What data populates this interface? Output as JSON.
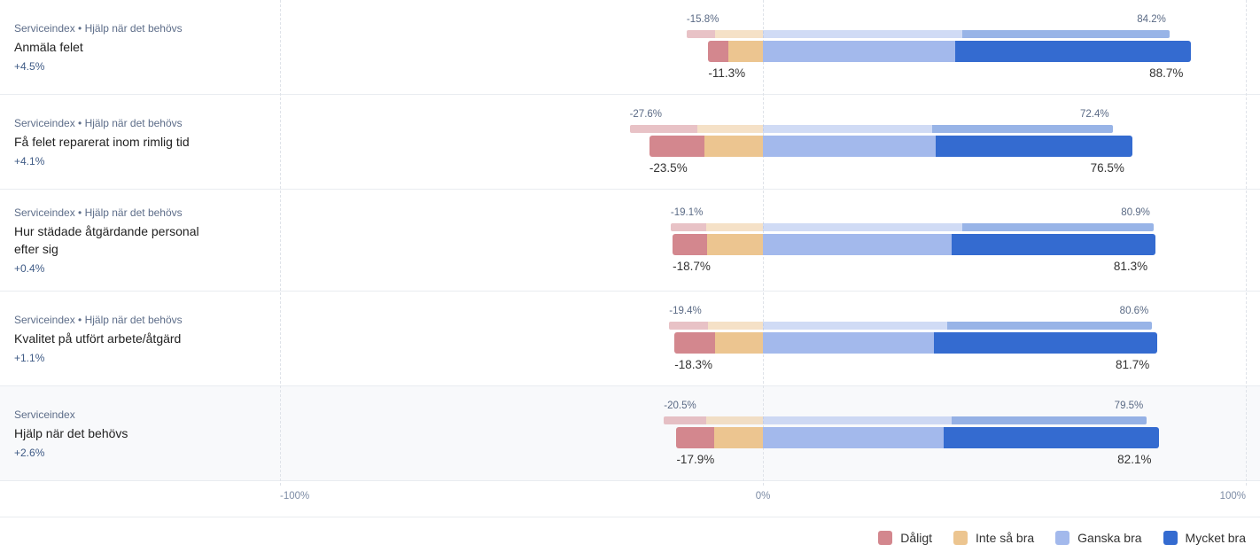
{
  "chart_data": {
    "type": "bar",
    "orientation": "horizontal",
    "stacked": true,
    "xlim": [
      -100,
      100
    ],
    "grid": true,
    "legend_position": "bottom-right",
    "ticks": [
      {
        "value": -100,
        "label": "-100%"
      },
      {
        "value": 0,
        "label": "0%"
      },
      {
        "value": 100,
        "label": "100%"
      }
    ],
    "series_names": [
      "Dåligt",
      "Inte så bra",
      "Ganska bra",
      "Mycket bra"
    ],
    "series_colors": [
      "#d3878e",
      "#ecc590",
      "#a3b9ec",
      "#346bd0"
    ],
    "negative_series_count": 2,
    "rows": [
      {
        "category": "Serviceindex • Hjälp när det behövs",
        "title": "Anmäla felet",
        "change": "+4.5%",
        "highlighted": false,
        "previous": {
          "values": [
            5.9,
            9.9,
            41.3,
            42.9
          ],
          "negative_label": "-15.8%",
          "positive_label": "84.2%"
        },
        "current": {
          "values": [
            4.2,
            7.1,
            39.8,
            48.9
          ],
          "negative_label": "-11.3%",
          "positive_label": "88.7%"
        }
      },
      {
        "category": "Serviceindex • Hjälp när det behövs",
        "title": "Få felet reparerat inom rimlig tid",
        "change": "+4.1%",
        "highlighted": false,
        "previous": {
          "values": [
            14.1,
            13.5,
            35.1,
            37.3
          ],
          "negative_label": "-27.6%",
          "positive_label": "72.4%"
        },
        "current": {
          "values": [
            11.4,
            12.1,
            35.7,
            40.8
          ],
          "negative_label": "-23.5%",
          "positive_label": "76.5%"
        }
      },
      {
        "category": "Serviceindex • Hjälp när det behövs",
        "title": "Hur städade åtgärdande personal efter sig",
        "change": "+0.4%",
        "highlighted": false,
        "previous": {
          "values": [
            7.3,
            11.8,
            41.2,
            39.7
          ],
          "negative_label": "-19.1%",
          "positive_label": "80.9%"
        },
        "current": {
          "values": [
            7.2,
            11.5,
            39.0,
            42.3
          ],
          "negative_label": "-18.7%",
          "positive_label": "81.3%"
        }
      },
      {
        "category": "Serviceindex • Hjälp när det behövs",
        "title": "Kvalitet på utfört arbete/åtgärd",
        "change": "+1.1%",
        "highlighted": false,
        "previous": {
          "values": [
            8.1,
            11.3,
            38.1,
            42.5
          ],
          "negative_label": "-19.4%",
          "positive_label": "80.6%"
        },
        "current": {
          "values": [
            8.4,
            9.9,
            35.5,
            46.2
          ],
          "negative_label": "-18.3%",
          "positive_label": "81.7%"
        }
      },
      {
        "category": "Serviceindex",
        "title": "Hjälp när det behövs",
        "change": "+2.6%",
        "highlighted": true,
        "previous": {
          "values": [
            8.8,
            11.7,
            39.0,
            40.5
          ],
          "negative_label": "-20.5%",
          "positive_label": "79.5%"
        },
        "current": {
          "values": [
            7.8,
            10.1,
            37.5,
            44.6
          ],
          "negative_label": "-17.9%",
          "positive_label": "82.1%"
        }
      }
    ]
  }
}
